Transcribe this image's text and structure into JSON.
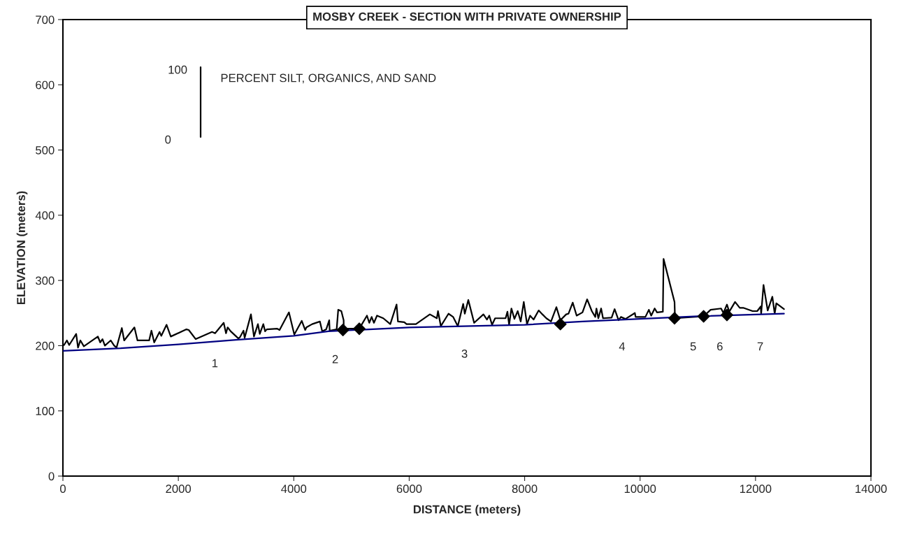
{
  "chart_data": {
    "type": "line",
    "title": "MOSBY CREEK - SECTION WITH PRIVATE OWNERSHIP",
    "xlabel": "DISTANCE (meters)",
    "ylabel": "ELEVATION (meters)",
    "xlim": [
      0,
      14000
    ],
    "xticks": [
      0,
      2000,
      4000,
      6000,
      8000,
      10000,
      12000,
      14000
    ],
    "ylim": [
      0,
      700
    ],
    "yticks": [
      0,
      100,
      200,
      300,
      400,
      500,
      600,
      700
    ],
    "grid": false,
    "legend": false,
    "series": [
      {
        "color": "#000000",
        "x": [
          20,
          69,
          109,
          230,
          262,
          303,
          363,
          606,
          646,
          686,
          727,
          828,
          888,
          929,
          1021,
          1062,
          1239,
          1292,
          1494,
          1534,
          1582,
          1675,
          1704,
          1796,
          1869,
          2140,
          2180,
          2301,
          2584,
          2636,
          2786,
          2826,
          2854,
          2907,
          3040,
          3068,
          3129,
          3149,
          3258,
          3310,
          3379,
          3411,
          3472,
          3504,
          3532,
          3714,
          3754,
          3916,
          4009,
          4138,
          4198,
          4219,
          4319,
          4453,
          4493,
          4562,
          4614,
          4622,
          4743,
          4770,
          4824,
          4864,
          4866,
          5135,
          5268,
          5308,
          5349,
          5389,
          5442,
          5551,
          5672,
          5781,
          5805,
          5914,
          5954,
          6116,
          6358,
          6479,
          6499,
          6548,
          6681,
          6762,
          6842,
          6935,
          6963,
          7024,
          7125,
          7286,
          7347,
          7387,
          7436,
          7488,
          7670,
          7702,
          7731,
          7771,
          7823,
          7880,
          7932,
          7985,
          8041,
          8094,
          8155,
          8243,
          8308,
          8376,
          8457,
          8550,
          8619,
          8720,
          8760,
          8833,
          8901,
          9002,
          9083,
          9164,
          9224,
          9244,
          9277,
          9325,
          9358,
          9507,
          9559,
          9628,
          9668,
          9749,
          9910,
          9922,
          10092,
          10152,
          10193,
          10253,
          10294,
          10395,
          10407,
          10597,
          10605,
          11101,
          11222,
          11404,
          11444,
          11505,
          11545,
          11646,
          11727,
          11787,
          11949,
          12030,
          12090,
          12098,
          12139,
          12211,
          12292,
          12332,
          12361,
          12494
        ],
        "values": [
          201,
          208,
          201,
          218,
          197,
          208,
          199,
          214,
          205,
          210,
          200,
          208,
          200,
          197,
          227,
          208,
          228,
          208,
          208,
          223,
          205,
          221,
          215,
          232,
          214,
          225,
          224,
          210,
          221,
          219,
          235,
          219,
          228,
          222,
          211,
          213,
          223,
          212,
          248,
          214,
          233,
          218,
          233,
          222,
          225,
          226,
          224,
          251,
          217,
          238,
          224,
          228,
          233,
          237,
          222,
          225,
          239,
          223,
          225,
          255,
          253,
          239,
          226,
          226,
          246,
          235,
          244,
          235,
          246,
          242,
          233,
          263,
          237,
          236,
          233,
          233,
          248,
          242,
          253,
          230,
          249,
          244,
          230,
          264,
          249,
          270,
          235,
          248,
          240,
          246,
          232,
          242,
          242,
          252,
          232,
          257,
          241,
          253,
          237,
          267,
          233,
          246,
          240,
          254,
          248,
          242,
          237,
          259,
          239,
          248,
          249,
          266,
          246,
          251,
          271,
          253,
          244,
          257,
          242,
          257,
          242,
          243,
          256,
          239,
          244,
          241,
          250,
          244,
          244,
          255,
          246,
          257,
          251,
          252,
          333,
          267,
          242,
          245,
          255,
          257,
          250,
          263,
          252,
          267,
          258,
          258,
          253,
          253,
          260,
          249,
          293,
          254,
          275,
          249,
          265,
          256
        ]
      },
      {
        "color": "#000080",
        "x": [
          0,
          1000,
          2000,
          3000,
          4000,
          4600,
          6000,
          8000,
          9000,
          10000,
          11000,
          12494
        ],
        "values": [
          192,
          196,
          202,
          209,
          215,
          222,
          228,
          232,
          237,
          241,
          245,
          249
        ]
      },
      {
        "type": "scatter",
        "color": "#000000",
        "marker": "diamond",
        "x": [
          4852,
          5135,
          8619,
          10597,
          11101,
          11505
        ],
        "values": [
          224,
          226,
          233,
          242,
          245,
          247
        ]
      },
      {
        "type": "line",
        "color": "#000000",
        "x": [
          2386,
          2386
        ],
        "values": [
          520,
          627
        ]
      }
    ],
    "annotations": [
      "100",
      "0",
      "PERCENT SILT, ORGANICS, AND SAND",
      "1",
      "2",
      "3",
      "4",
      "5",
      "6",
      "7"
    ]
  }
}
